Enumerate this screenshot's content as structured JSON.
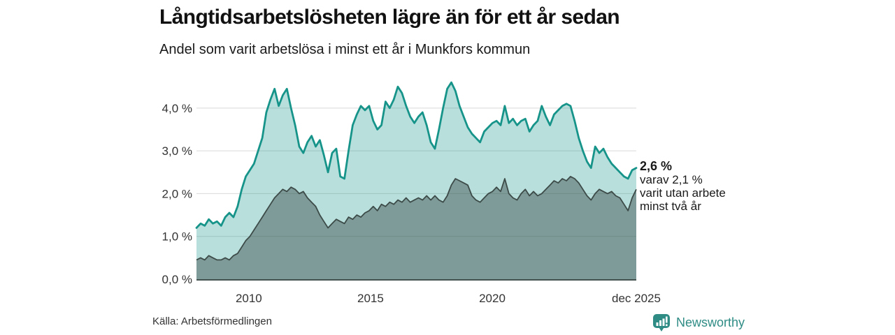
{
  "header": {
    "title": "Långtidsarbetslösheten lägre än för ett år sedan",
    "subtitle": "Andel som varit arbetslösa i minst ett år i Munkfors kommun"
  },
  "annotation": {
    "value_label": "2,6 %",
    "line1": "varav 2,1 %",
    "line2": "varit utan arbete",
    "line3": "minst två år"
  },
  "footer": {
    "source": "Källa: Arbetsförmedlingen",
    "brand": "Newsworthy"
  },
  "colors": {
    "accent_teal": "#17948a",
    "dark_series": "#3c4b48",
    "light_fill": "rgba(23,148,138,0.30)",
    "dark_fill": "rgba(47,62,59,0.42)",
    "gridline": "#d9d9d9",
    "baseline": "#44534f",
    "brand_teal": "#2f8c85"
  },
  "chart_data": {
    "type": "area",
    "title": "Långtidsarbetslösheten lägre än för ett år sedan",
    "subtitle": "Andel som varit arbetslösa i minst ett år i Munkfors kommun",
    "unit": "%",
    "grid": "horizontal",
    "legend_position": "none",
    "x_domain": [
      2007.85,
      2025.917
    ],
    "ylim": [
      0,
      4.65
    ],
    "x_ticks": [
      {
        "label": "2010",
        "x": 2010
      },
      {
        "label": "2015",
        "x": 2015
      },
      {
        "label": "2020",
        "x": 2020
      },
      {
        "label": "dec 2025",
        "x": 2025.917
      }
    ],
    "y_ticks": [
      {
        "label": "0,0 %",
        "value": 0
      },
      {
        "label": "1,0 %",
        "value": 1
      },
      {
        "label": "2,0 %",
        "value": 2
      },
      {
        "label": "3,0 %",
        "value": 3
      },
      {
        "label": "4,0 %",
        "value": 4
      }
    ],
    "series": [
      {
        "name": "Andel arbetslösa minst ett år",
        "end_label": "2,6 %",
        "end_value": 2.6,
        "color": "#17948a",
        "values": [
          1.2,
          1.3,
          1.25,
          1.4,
          1.3,
          1.35,
          1.25,
          1.45,
          1.55,
          1.45,
          1.7,
          2.1,
          2.4,
          2.55,
          2.7,
          3.0,
          3.3,
          3.9,
          4.2,
          4.45,
          4.05,
          4.3,
          4.45,
          4.0,
          3.6,
          3.1,
          2.95,
          3.2,
          3.35,
          3.1,
          3.25,
          2.9,
          2.5,
          2.95,
          3.05,
          2.4,
          2.35,
          3.0,
          3.6,
          3.85,
          4.05,
          3.95,
          4.05,
          3.7,
          3.5,
          3.6,
          4.15,
          4.0,
          4.2,
          4.5,
          4.35,
          4.05,
          3.8,
          3.65,
          3.8,
          3.9,
          3.6,
          3.2,
          3.05,
          3.5,
          4.0,
          4.45,
          4.6,
          4.4,
          4.05,
          3.8,
          3.55,
          3.4,
          3.3,
          3.2,
          3.45,
          3.55,
          3.65,
          3.7,
          3.6,
          4.05,
          3.65,
          3.75,
          3.6,
          3.7,
          3.75,
          3.45,
          3.6,
          3.7,
          4.05,
          3.8,
          3.6,
          3.85,
          3.95,
          4.05,
          4.1,
          4.05,
          3.7,
          3.3,
          3.0,
          2.75,
          2.6,
          3.1,
          2.95,
          3.05,
          2.85,
          2.7,
          2.6,
          2.5,
          2.4,
          2.35,
          2.55,
          2.6
        ]
      },
      {
        "name": "varav arbetslösa minst två år",
        "end_label": "2,1 %",
        "end_value": 2.1,
        "color": "#3c4b48",
        "values": [
          0.45,
          0.5,
          0.45,
          0.55,
          0.5,
          0.45,
          0.45,
          0.5,
          0.45,
          0.55,
          0.6,
          0.75,
          0.9,
          1.0,
          1.15,
          1.3,
          1.45,
          1.6,
          1.75,
          1.9,
          2.0,
          2.1,
          2.05,
          2.15,
          2.1,
          2.0,
          2.05,
          1.9,
          1.8,
          1.7,
          1.5,
          1.35,
          1.2,
          1.3,
          1.4,
          1.35,
          1.3,
          1.45,
          1.4,
          1.5,
          1.45,
          1.55,
          1.6,
          1.7,
          1.6,
          1.75,
          1.7,
          1.8,
          1.75,
          1.85,
          1.8,
          1.9,
          1.8,
          1.85,
          1.9,
          1.85,
          1.95,
          1.85,
          1.95,
          1.85,
          1.8,
          1.95,
          2.2,
          2.35,
          2.3,
          2.25,
          2.2,
          1.95,
          1.85,
          1.8,
          1.9,
          2.0,
          2.05,
          2.15,
          2.05,
          2.35,
          2.0,
          1.9,
          1.85,
          2.0,
          2.1,
          1.95,
          2.05,
          1.95,
          2.0,
          2.1,
          2.2,
          2.3,
          2.25,
          2.35,
          2.3,
          2.4,
          2.35,
          2.25,
          2.1,
          1.95,
          1.85,
          2.0,
          2.1,
          2.05,
          2.0,
          2.05,
          1.95,
          1.9,
          1.75,
          1.6,
          1.9,
          2.1
        ]
      }
    ]
  }
}
